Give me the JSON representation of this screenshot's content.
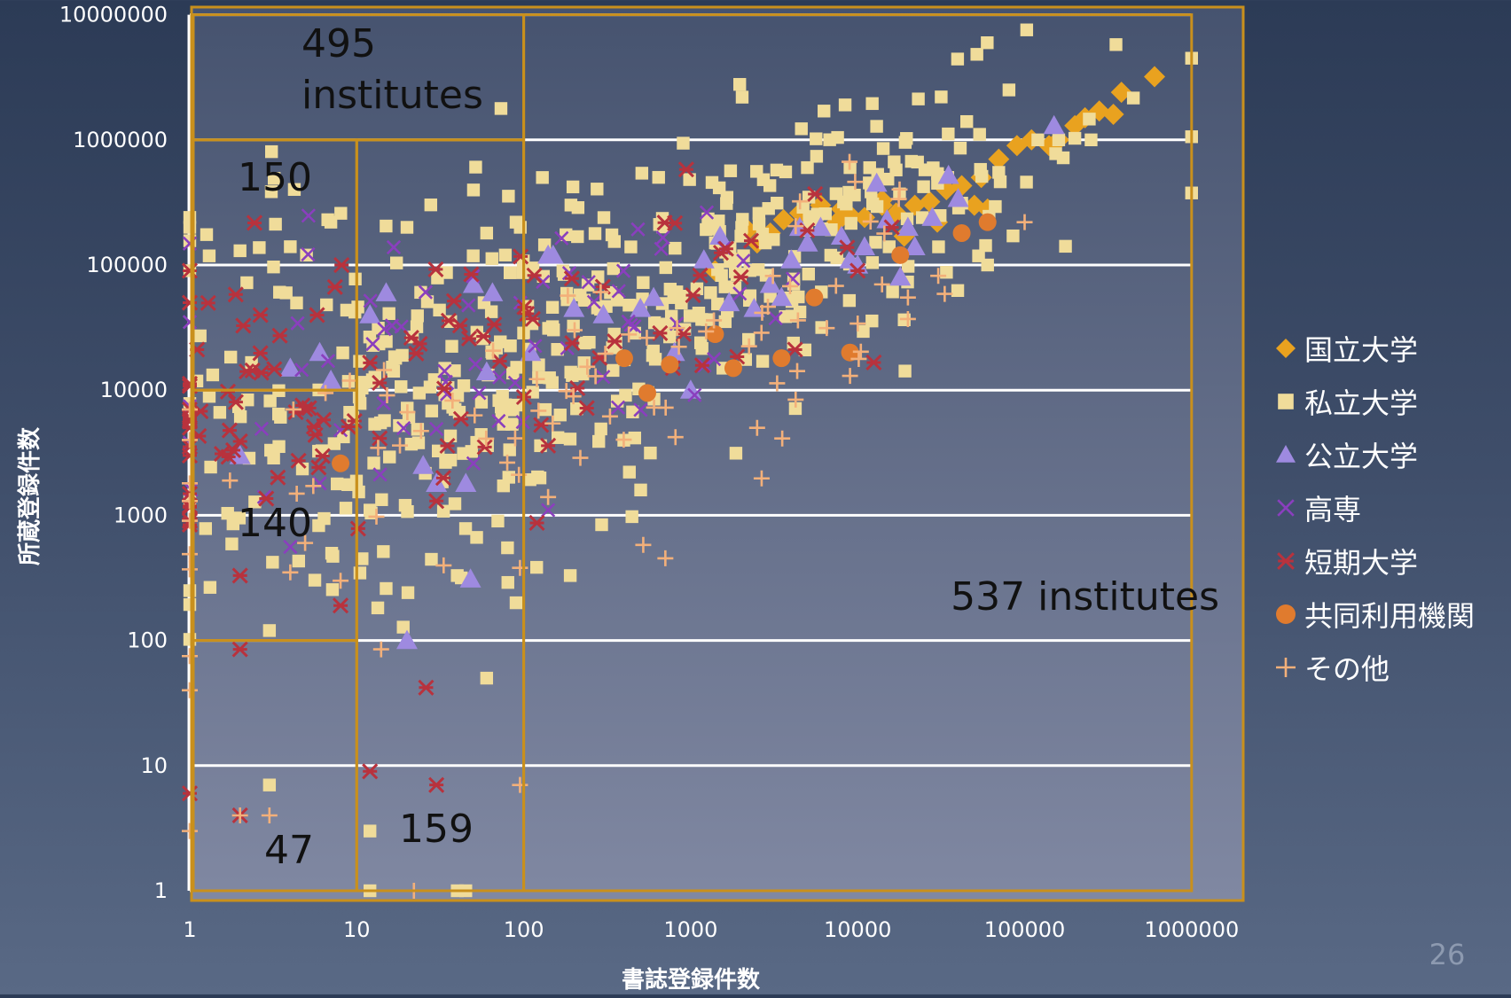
{
  "slide": {
    "page_number": "26"
  },
  "colors": {
    "national": "#e9a21f",
    "private": "#f0dc9a",
    "public": "#9e8ae0",
    "kosen": "#8a3fbe",
    "junior_college": "#b8323d",
    "inter_univ": "#e07b2e",
    "other": "#f3b07a",
    "region_border": "#c9901c",
    "gridline": "#ffffff"
  },
  "chart_data": {
    "type": "scatter",
    "xlabel": "書誌登録件数",
    "ylabel": "所蔵登録件数",
    "x_scale": "log",
    "y_scale": "log",
    "xlim": [
      1,
      1000000
    ],
    "ylim": [
      1,
      10000000
    ],
    "grid": "horizontal",
    "legend_position": "right",
    "x_ticks": [
      "1",
      "10",
      "100",
      "1000",
      "10000",
      "100000",
      "1000000"
    ],
    "y_ticks": [
      "10000000",
      "1000000",
      "100000",
      "10000",
      "1000",
      "100",
      "10",
      "1"
    ],
    "region_labels": [
      {
        "line1": "495",
        "line2": "institutes"
      },
      {
        "line1": "150",
        "line2": ""
      },
      {
        "line1": "140",
        "line2": ""
      },
      {
        "line1": "537 institutes",
        "line2": ""
      },
      {
        "line1": "159",
        "line2": ""
      },
      {
        "line1": "47",
        "line2": ""
      }
    ],
    "regions": [
      {
        "x": [
          1,
          100
        ],
        "y": [
          1000000,
          10000000
        ]
      },
      {
        "x": [
          1,
          10
        ],
        "y": [
          10000,
          1000000
        ]
      },
      {
        "x": [
          1,
          10
        ],
        "y": [
          100,
          10000
        ]
      },
      {
        "x": [
          10,
          100
        ],
        "y": [
          1,
          1000000
        ]
      },
      {
        "x": [
          100,
          1000000
        ],
        "y": [
          1,
          10000000
        ]
      },
      {
        "x": [
          1,
          10
        ],
        "y": [
          1,
          100
        ]
      }
    ],
    "series": [
      {
        "name": "国立大学",
        "marker": "diamond",
        "color_key": "national",
        "points": [
          [
            600000,
            3200000
          ],
          [
            380000,
            2400000
          ],
          [
            280000,
            1700000
          ],
          [
            340000,
            1600000
          ],
          [
            230000,
            1500000
          ],
          [
            200000,
            1300000
          ],
          [
            160000,
            1000000
          ],
          [
            140000,
            900000
          ],
          [
            110000,
            1000000
          ],
          [
            90000,
            900000
          ],
          [
            70000,
            700000
          ],
          [
            55000,
            500000
          ],
          [
            42000,
            430000
          ],
          [
            34000,
            400000
          ],
          [
            27000,
            320000
          ],
          [
            22000,
            300000
          ],
          [
            17000,
            260000
          ],
          [
            14000,
            300000
          ],
          [
            11000,
            240000
          ],
          [
            9000,
            250000
          ],
          [
            7500,
            220000
          ],
          [
            6000,
            300000
          ],
          [
            4500,
            260000
          ],
          [
            3000,
            180000
          ],
          [
            2500,
            150000
          ],
          [
            1800,
            110000
          ],
          [
            1400,
            90000
          ],
          [
            50000,
            300000
          ],
          [
            30000,
            220000
          ],
          [
            19000,
            170000
          ],
          [
            60000,
            280000
          ],
          [
            14000,
            330000
          ],
          [
            3600,
            230000
          ],
          [
            2200,
            190000
          ],
          [
            8000,
            280000
          ]
        ]
      },
      {
        "name": "私立大学",
        "marker": "square",
        "color_key": "private",
        "seed": 7,
        "clusters": [
          {
            "n": 320,
            "cx": 500,
            "sx": 1.1,
            "cy": 40000,
            "sy": 0.6,
            "slope": 0.55
          },
          {
            "n": 90,
            "cx": 25,
            "sx": 0.6,
            "cy": 15000,
            "sy": 0.9,
            "slope": 0.3
          },
          {
            "n": 30,
            "cx": 2.5,
            "sx": 0.3,
            "cy": 10000,
            "sy": 1.0,
            "slope": 0.0
          },
          {
            "n": 40,
            "cx": 20000,
            "sx": 0.5,
            "cy": 300000,
            "sy": 0.35,
            "slope": 0.4
          }
        ],
        "points": [
          [
            1,
            240000
          ],
          [
            1,
            200000
          ],
          [
            1,
            250
          ],
          [
            1,
            90000
          ],
          [
            3,
            7
          ],
          [
            3,
            120
          ],
          [
            12,
            3
          ],
          [
            12,
            1
          ],
          [
            40,
            1
          ],
          [
            45,
            1
          ],
          [
            60,
            50
          ],
          [
            90,
            200
          ],
          [
            190,
            330
          ],
          [
            80,
            550
          ],
          [
            70,
            900
          ],
          [
            40,
            330
          ],
          [
            15,
            260
          ],
          [
            12,
            1100
          ],
          [
            35,
            10000
          ],
          [
            160000,
            1000000
          ],
          [
            120000,
            1000000
          ],
          [
            250000,
            1000000
          ],
          [
            45000,
            1400000
          ],
          [
            5000,
            600000
          ],
          [
            9000,
            600000
          ],
          [
            2000,
            170000
          ],
          [
            60000,
            100000
          ],
          [
            70000,
            550000
          ],
          [
            20,
            200000
          ],
          [
            60,
            180000
          ],
          [
            90,
            220000
          ],
          [
            7,
            220000
          ],
          [
            2,
            130000
          ],
          [
            4,
            140000
          ],
          [
            5,
            120000
          ]
        ]
      },
      {
        "name": "公立大学",
        "marker": "triangle",
        "color_key": "public",
        "points": [
          [
            150000,
            1300000
          ],
          [
            35000,
            520000
          ],
          [
            40000,
            340000
          ],
          [
            28000,
            240000
          ],
          [
            20000,
            200000
          ],
          [
            15000,
            230000
          ],
          [
            13000,
            450000
          ],
          [
            8000,
            170000
          ],
          [
            6000,
            200000
          ],
          [
            4500,
            200000
          ],
          [
            4000,
            110000
          ],
          [
            3000,
            70000
          ],
          [
            1500,
            170000
          ],
          [
            1200,
            110000
          ],
          [
            600,
            55000
          ],
          [
            500,
            45000
          ],
          [
            300,
            40000
          ],
          [
            200,
            45000
          ],
          [
            150,
            120000
          ],
          [
            140,
            120000
          ],
          [
            110,
            20000
          ],
          [
            65,
            60000
          ],
          [
            50,
            70000
          ],
          [
            60,
            14000
          ],
          [
            45,
            1800
          ],
          [
            30,
            1800
          ],
          [
            25,
            2500
          ],
          [
            15,
            60000
          ],
          [
            12,
            40000
          ],
          [
            6,
            20000
          ],
          [
            4,
            15000
          ],
          [
            7,
            12000
          ],
          [
            2,
            3000
          ],
          [
            48,
            310
          ],
          [
            20,
            100
          ],
          [
            800,
            20000
          ],
          [
            1000,
            10000
          ],
          [
            1700,
            50000
          ],
          [
            2400,
            45000
          ],
          [
            10000,
            100000
          ],
          [
            11000,
            140000
          ],
          [
            9000,
            110000
          ],
          [
            5000,
            150000
          ],
          [
            3500,
            55000
          ],
          [
            18000,
            80000
          ],
          [
            22000,
            140000
          ]
        ]
      },
      {
        "name": "高専",
        "marker": "x",
        "color_key": "kosen",
        "seed": 21,
        "clusters": [
          {
            "n": 45,
            "cx": 300,
            "sx": 0.8,
            "cy": 30000,
            "sy": 0.45,
            "slope": 0.45
          },
          {
            "n": 15,
            "cx": 8,
            "sx": 0.5,
            "cy": 20000,
            "sy": 0.5,
            "slope": 0.0
          }
        ],
        "points": [
          [
            1,
            35000
          ],
          [
            1,
            3800
          ],
          [
            4,
            560
          ],
          [
            6,
            1800
          ],
          [
            8,
            4800
          ],
          [
            140,
            1100
          ],
          [
            50,
            2600
          ],
          [
            30,
            4900
          ]
        ]
      },
      {
        "name": "短期大学",
        "marker": "asterisk",
        "color_key": "junior_college",
        "seed": 33,
        "clusters": [
          {
            "n": 70,
            "cx": 60,
            "sx": 1.0,
            "cy": 15000,
            "sy": 0.45,
            "slope": 0.35
          },
          {
            "n": 30,
            "cx": 2.5,
            "sx": 0.35,
            "cy": 15000,
            "sy": 0.6,
            "slope": 0.0
          }
        ],
        "points": [
          [
            1,
            90000
          ],
          [
            1,
            50000
          ],
          [
            1,
            7000
          ],
          [
            1,
            5000
          ],
          [
            1,
            3000
          ],
          [
            1,
            900
          ],
          [
            1,
            6
          ],
          [
            2,
            330
          ],
          [
            2,
            85
          ],
          [
            2,
            3900
          ],
          [
            2,
            4
          ],
          [
            8,
            190
          ],
          [
            12,
            9
          ],
          [
            26,
            42
          ],
          [
            30,
            7
          ],
          [
            30,
            1300
          ],
          [
            120,
            870
          ],
          [
            140,
            3600
          ],
          [
            16000,
            200000
          ],
          [
            10000,
            90000
          ],
          [
            2000,
            80000
          ]
        ]
      },
      {
        "name": "共同利用機関",
        "marker": "circle",
        "color_key": "inter_univ",
        "points": [
          [
            60000,
            220000
          ],
          [
            42000,
            180000
          ],
          [
            18000,
            120000
          ],
          [
            5500,
            55000
          ],
          [
            9000,
            20000
          ],
          [
            3500,
            18000
          ],
          [
            1800,
            15000
          ],
          [
            1400,
            28000
          ],
          [
            750,
            16000
          ],
          [
            400,
            18000
          ],
          [
            550,
            9500
          ],
          [
            8,
            2600
          ]
        ]
      },
      {
        "name": "その他",
        "marker": "plus",
        "color_key": "other",
        "seed": 57,
        "clusters": [
          {
            "n": 60,
            "cx": 700,
            "sx": 1.1,
            "cy": 15000,
            "sy": 0.5,
            "slope": 0.4
          },
          {
            "n": 15,
            "cx": 15,
            "sx": 0.6,
            "cy": 3000,
            "sy": 0.6,
            "slope": 0.3
          }
        ],
        "points": [
          [
            1,
            7000
          ],
          [
            1,
            4000
          ],
          [
            1,
            1800
          ],
          [
            1,
            1300
          ],
          [
            1,
            370
          ],
          [
            1,
            75
          ],
          [
            1,
            40
          ],
          [
            1,
            3
          ],
          [
            2,
            4
          ],
          [
            3,
            4
          ],
          [
            4,
            350
          ],
          [
            8,
            300
          ],
          [
            14,
            85
          ],
          [
            22,
            1
          ],
          [
            95,
            7
          ],
          [
            95,
            380
          ],
          [
            140,
            1400
          ],
          [
            520,
            580
          ],
          [
            2500,
            5000
          ],
          [
            100000,
            220000
          ],
          [
            20000,
            37000
          ],
          [
            20000,
            55000
          ],
          [
            9000,
            13000
          ],
          [
            14000,
            70000
          ]
        ]
      }
    ]
  }
}
